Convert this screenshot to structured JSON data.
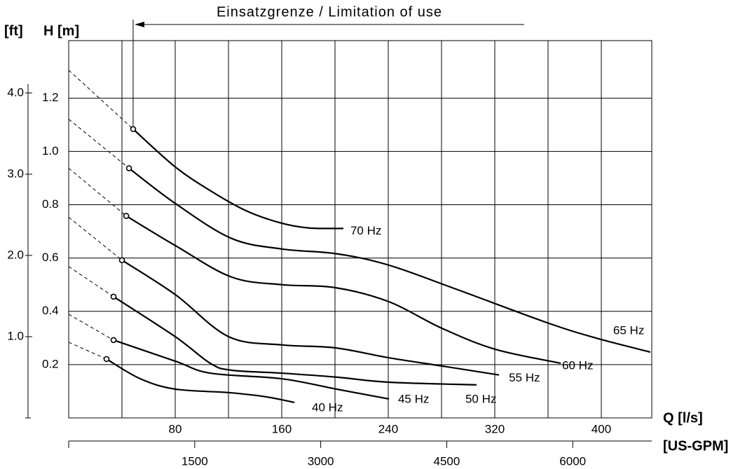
{
  "chart_data": {
    "type": "line",
    "title": "Einsatzgrenze / Limitation of use",
    "limit_x": 48.4,
    "y_label_ft": "[ft]",
    "y_label": "H [m]",
    "x_label": "Q [l/s]",
    "x2_label": "[US-GPM]",
    "xlim": [
      0,
      437.9
    ],
    "xticks": [
      80,
      160,
      240,
      320,
      400
    ],
    "xgrid": [
      40,
      80,
      120,
      160,
      200,
      240,
      280,
      320,
      360,
      400
    ],
    "x2lim": [
      0,
      6941
    ],
    "x2ticks": [
      1500,
      3000,
      4500,
      6000
    ],
    "ylim": [
      0,
      1.416
    ],
    "yticks": [
      0.2,
      0.4,
      0.6,
      0.8,
      {
        "value": 1,
        "label": "1.0"
      },
      1.2
    ],
    "y_ft_lim": [
      0,
      4.645
    ],
    "y_ft_ticks": [
      {
        "value": 1,
        "label": "1.0"
      },
      {
        "value": 2,
        "label": "2.0"
      },
      {
        "value": 3,
        "label": "3.0"
      },
      {
        "value": 4,
        "label": "4.0"
      }
    ],
    "grid": true,
    "color": "#000000",
    "series": [
      {
        "name": "70 Hz",
        "dashed_start": 1.305,
        "x": [
          48.4,
          80,
          106.3,
          132.6,
          158.9,
          180,
          206.3
        ],
        "values": [
          1.084,
          0.942,
          0.853,
          0.779,
          0.732,
          0.713,
          0.711
        ]
      },
      {
        "name": "65 Hz",
        "dashed_start": 1.121,
        "x": [
          45.3,
          80,
          122.1,
          160,
          201.1,
          240,
          290.5,
          358.9,
          395.8,
          436.8
        ],
        "values": [
          0.937,
          0.805,
          0.674,
          0.634,
          0.616,
          0.574,
          0.484,
          0.358,
          0.3,
          0.247
        ]
      },
      {
        "name": "60 Hz",
        "dashed_start": 0.937,
        "x": [
          43.2,
          80,
          122.1,
          160,
          200,
          240,
          280,
          320,
          369.5
        ],
        "values": [
          0.758,
          0.647,
          0.529,
          0.5,
          0.489,
          0.437,
          0.337,
          0.258,
          0.205
        ]
      },
      {
        "name": "55 Hz",
        "dashed_start": 0.753,
        "x": [
          40,
          80,
          120,
          160,
          200,
          240,
          280,
          323.2
        ],
        "values": [
          0.592,
          0.463,
          0.305,
          0.274,
          0.263,
          0.226,
          0.195,
          0.161
        ]
      },
      {
        "name": "50 Hz",
        "dashed_start": 0.568,
        "x": [
          33.7,
          80,
          106.3,
          122.1,
          160,
          201.1,
          240,
          306.3
        ],
        "values": [
          0.455,
          0.305,
          0.205,
          0.179,
          0.168,
          0.153,
          0.134,
          0.124
        ]
      },
      {
        "name": "45 Hz",
        "dashed_start": 0.389,
        "x": [
          33.7,
          80,
          106.3,
          160,
          201.1,
          240.5
        ],
        "values": [
          0.292,
          0.213,
          0.168,
          0.147,
          0.108,
          0.071
        ]
      },
      {
        "name": "40 Hz",
        "dashed_start": 0.284,
        "x": [
          28.4,
          53.7,
          80,
          120,
          148.4,
          169.5
        ],
        "values": [
          0.221,
          0.147,
          0.108,
          0.095,
          0.079,
          0.058
        ]
      }
    ]
  }
}
